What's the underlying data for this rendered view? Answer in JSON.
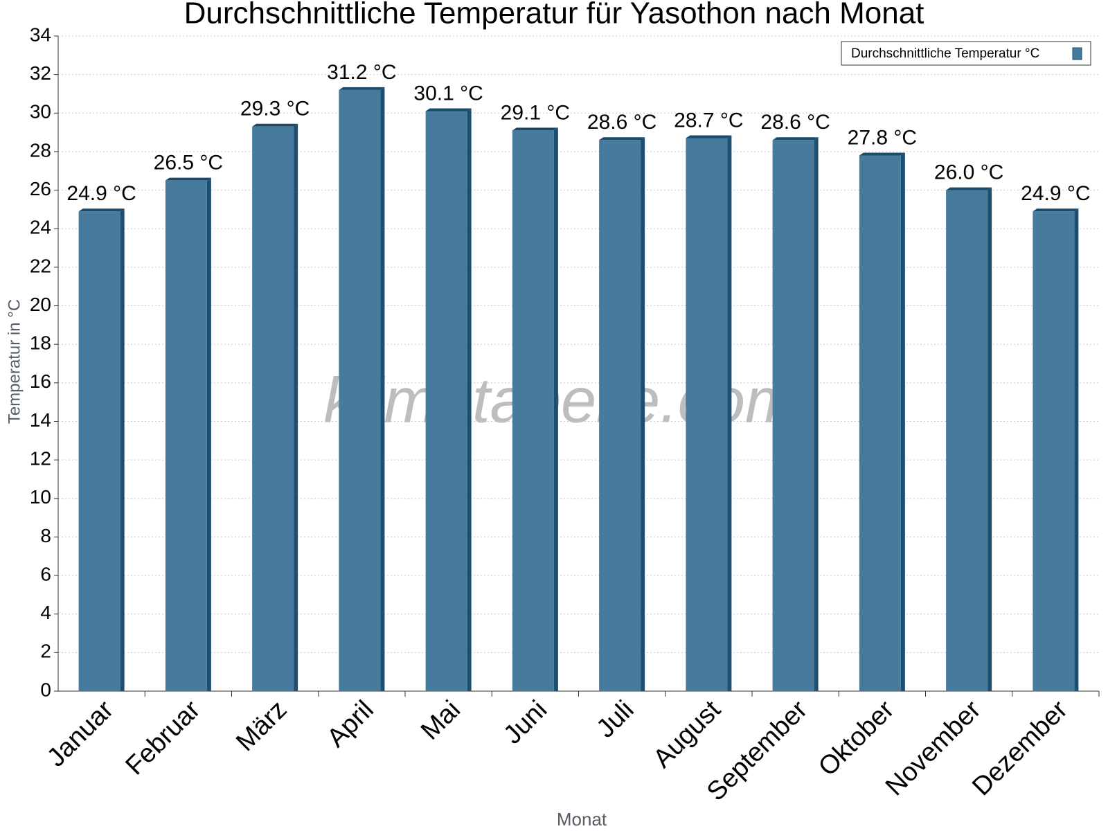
{
  "chart_data": {
    "type": "bar",
    "title": "Durchschnittliche Temperatur für Yasothon nach Monat",
    "x_label": "Monat",
    "y_label": "Temperatur in °C",
    "watermark": "klimatabelle.com",
    "categories": [
      "Januar",
      "Februar",
      "März",
      "April",
      "Mai",
      "Juni",
      "Juli",
      "August",
      "September",
      "Oktober",
      "November",
      "Dezember"
    ],
    "series": [
      {
        "name": "Durchschnittliche Temperatur °C",
        "color": "#467b9e",
        "values": [
          24.9,
          26.5,
          29.3,
          31.2,
          30.1,
          29.1,
          28.6,
          28.7,
          28.6,
          27.8,
          26.0,
          24.9
        ],
        "value_labels": [
          "24.9 °C",
          "26.5 °C",
          "29.3 °C",
          "31.2 °C",
          "30.1 °C",
          "29.1 °C",
          "28.6 °C",
          "28.7 °C",
          "28.6 °C",
          "27.8 °C",
          "26.0 °C",
          "24.9 °C"
        ]
      }
    ],
    "ylim": [
      0,
      34
    ],
    "yticks": [
      0,
      2,
      4,
      6,
      8,
      10,
      12,
      14,
      16,
      18,
      20,
      22,
      24,
      26,
      28,
      30,
      32,
      34
    ],
    "grid": true,
    "legend": "upper right"
  }
}
